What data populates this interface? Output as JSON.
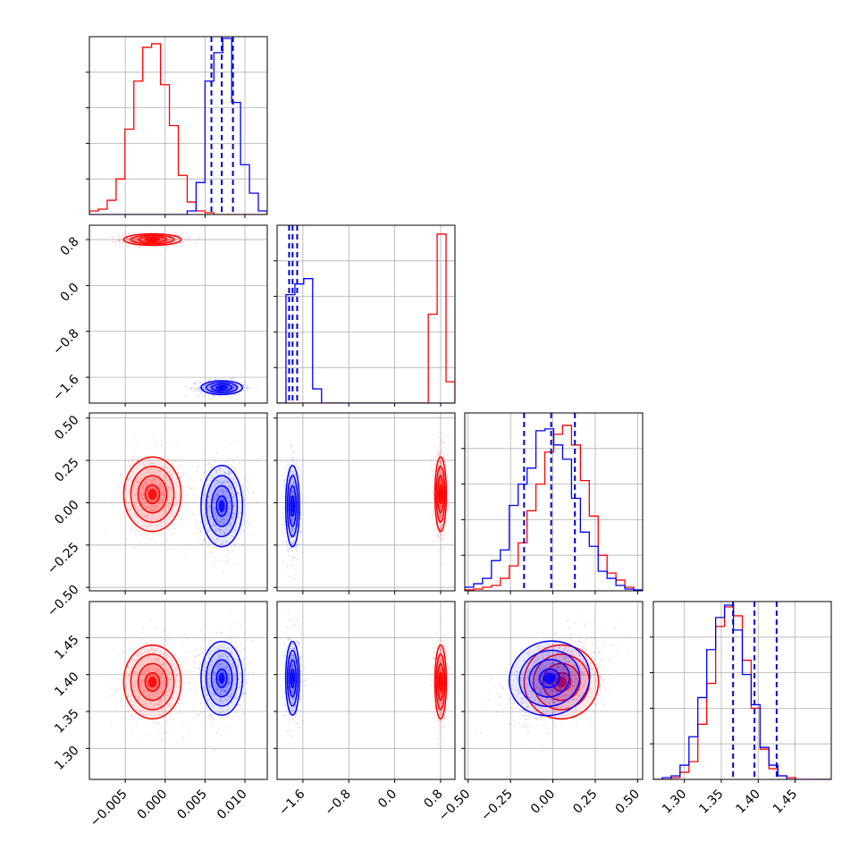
{
  "chart_data": {
    "type": "corner",
    "grid": true,
    "parameters": [
      {
        "range": [
          -0.0095,
          0.0128
        ],
        "ticks": [
          -0.005,
          0.0,
          0.005,
          0.01
        ],
        "tick_labels": [
          "−0.005",
          "0.000",
          "0.005",
          "0.010"
        ]
      },
      {
        "range": [
          -2.05,
          1.05
        ],
        "ticks": [
          -1.6,
          -0.8,
          0.0,
          0.8
        ],
        "tick_labels": [
          "−1.6",
          "−0.8",
          "0.0",
          "0.8"
        ]
      },
      {
        "range": [
          -0.52,
          0.53
        ],
        "ticks": [
          -0.5,
          -0.25,
          0.0,
          0.25,
          0.5
        ],
        "tick_labels": [
          "−0.50",
          "−0.25",
          "0.00",
          "0.25",
          "0.50"
        ]
      },
      {
        "range": [
          1.258,
          1.499
        ],
        "ticks": [
          1.3,
          1.35,
          1.4,
          1.45
        ],
        "tick_labels": [
          "1.30",
          "1.35",
          "1.40",
          "1.45"
        ]
      }
    ],
    "series": [
      {
        "color": "#ff0000",
        "means": [
          -0.0016,
          0.8,
          0.05,
          1.39
        ],
        "stds": [
          0.0018,
          0.05,
          0.11,
          0.025
        ],
        "corr_13": 0.4,
        "histograms": [
          [
            0.02,
            0.03,
            0.08,
            0.2,
            0.48,
            0.75,
            0.94,
            0.96,
            0.73,
            0.5,
            0.22,
            0.07,
            0.02,
            0.01,
            0,
            0,
            0,
            0,
            0,
            0
          ],
          [
            0,
            0,
            0,
            0,
            0,
            0,
            0,
            0,
            0,
            0,
            0,
            0,
            0,
            0,
            0,
            0,
            0,
            0.5,
            0.95,
            0.12
          ],
          [
            0.005,
            0.01,
            0.02,
            0.03,
            0.07,
            0.14,
            0.27,
            0.45,
            0.6,
            0.78,
            0.88,
            0.93,
            0.82,
            0.62,
            0.42,
            0.2,
            0.1,
            0.06,
            0.02,
            0.005
          ],
          [
            0,
            0,
            0.01,
            0.04,
            0.1,
            0.31,
            0.54,
            0.86,
            0.97,
            0.92,
            0.67,
            0.4,
            0.17,
            0.06,
            0.02,
            0.01,
            0,
            0,
            0,
            0
          ]
        ]
      },
      {
        "color": "#0000ff",
        "means": [
          0.0071,
          -1.78,
          -0.02,
          1.395
        ],
        "stds": [
          0.0013,
          0.06,
          0.12,
          0.025
        ],
        "corr_13": 0.4,
        "histograms": [
          [
            0,
            0,
            0,
            0,
            0,
            0,
            0,
            0,
            0,
            0,
            0,
            0.02,
            0.18,
            0.75,
            0.91,
            0.99,
            0.63,
            0.28,
            0.12,
            0.02
          ],
          [
            0,
            0.61,
            0.67,
            0.7,
            0.08,
            0,
            0,
            0,
            0,
            0,
            0,
            0,
            0,
            0,
            0,
            0,
            0,
            0,
            0,
            0
          ],
          [
            0.02,
            0.04,
            0.07,
            0.17,
            0.23,
            0.48,
            0.6,
            0.69,
            0.9,
            0.91,
            0.82,
            0.74,
            0.52,
            0.33,
            0.25,
            0.11,
            0.07,
            0.03,
            0.01,
            0.005
          ],
          [
            0,
            0.01,
            0.02,
            0.08,
            0.24,
            0.46,
            0.73,
            0.91,
            0.98,
            0.84,
            0.59,
            0.42,
            0.18,
            0.08,
            0.02,
            0,
            0,
            0,
            0,
            0
          ]
        ]
      }
    ],
    "quantiles": [
      [
        0.0058,
        0.0071,
        0.0085
      ],
      [
        -1.84,
        -1.78,
        -1.7
      ],
      [
        -0.17,
        -0.01,
        0.13
      ],
      [
        1.366,
        1.395,
        1.425
      ]
    ],
    "quantile_color": "#0000cc"
  }
}
